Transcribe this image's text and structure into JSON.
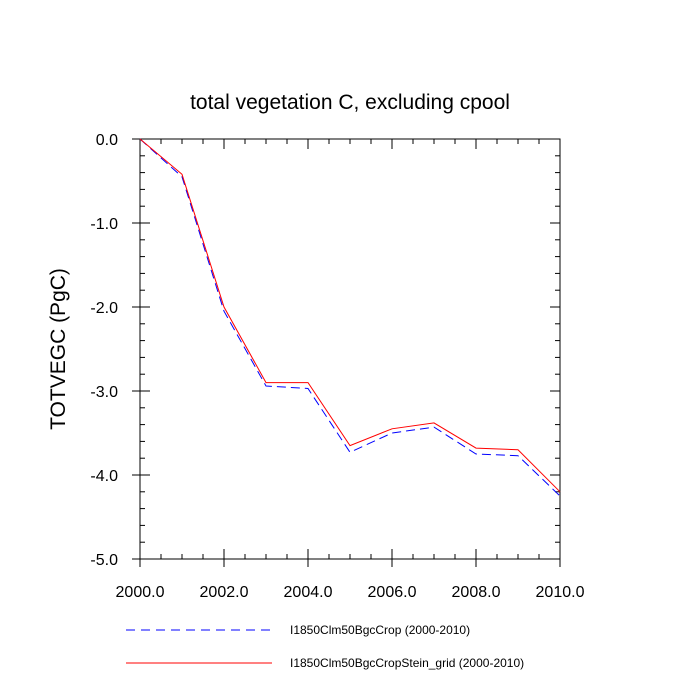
{
  "chart_data": {
    "type": "line",
    "title": "total vegetation C, excluding cpool",
    "xlabel": "",
    "ylabel": "TOTVEGC  (PgC)",
    "xlim": [
      2000,
      2010
    ],
    "ylim": [
      -5,
      0
    ],
    "x": [
      2000,
      2001,
      2002,
      2003,
      2004,
      2005,
      2006,
      2007,
      2008,
      2009,
      2010
    ],
    "x_ticks": [
      2000,
      2002,
      2004,
      2006,
      2008,
      2010
    ],
    "x_tick_labels": [
      "2000.0",
      "2002.0",
      "2004.0",
      "2006.0",
      "2008.0",
      "2010.0"
    ],
    "y_ticks": [
      0,
      -1,
      -2,
      -3,
      -4,
      -5
    ],
    "y_tick_labels": [
      "0.0",
      "-1.0",
      "-2.0",
      "-3.0",
      "-4.0",
      "-5.0"
    ],
    "grid": false,
    "legend_position": "bottom",
    "series": [
      {
        "name": "I1850Clm50BgcCrop (2000-2010)",
        "color": "#0000ff",
        "style": "dashed",
        "values": [
          0.0,
          -0.45,
          -2.05,
          -2.94,
          -2.97,
          -3.73,
          -3.5,
          -3.43,
          -3.75,
          -3.77,
          -4.25
        ]
      },
      {
        "name": "I1850Clm50BgcCropStein_grid (2000-2010)",
        "color": "#ff0000",
        "style": "solid",
        "values": [
          0.0,
          -0.42,
          -2.0,
          -2.9,
          -2.9,
          -3.65,
          -3.45,
          -3.38,
          -3.68,
          -3.7,
          -4.2
        ]
      }
    ]
  }
}
